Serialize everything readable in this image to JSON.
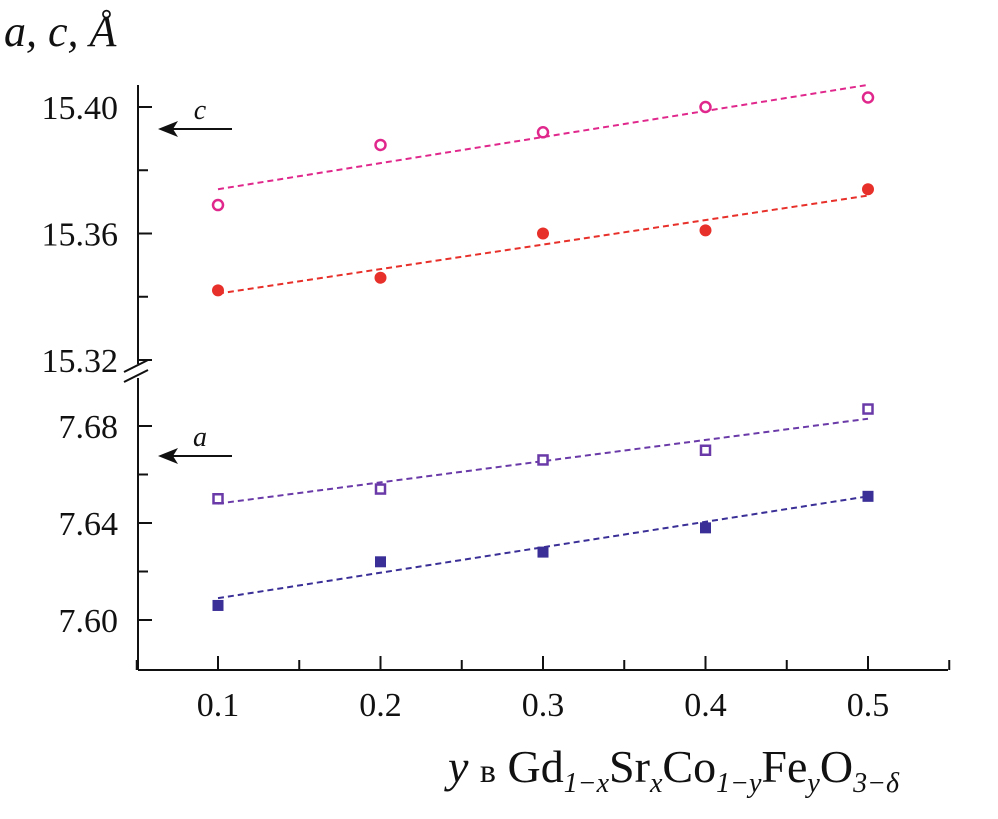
{
  "chart_data": {
    "type": "scatter",
    "title": "",
    "ylabel": "a, c, Å",
    "xlabel": {
      "variable": "y",
      "preposition": "в",
      "formula_parts": [
        {
          "text": "Gd",
          "sub": "1−x"
        },
        {
          "text": "Sr",
          "sub": "x"
        },
        {
          "text": "Co",
          "sub": "1−y"
        },
        {
          "text": "Fe",
          "sub": "y"
        },
        {
          "text": "O",
          "sub": "3−δ"
        }
      ]
    },
    "xlim": [
      0.05,
      0.55
    ],
    "x_ticks": [
      "0.1",
      "0.2",
      "0.3",
      "0.4",
      "0.5"
    ],
    "y_axis_broken": true,
    "panels": [
      {
        "name": "c",
        "ylim": [
          15.32,
          15.407
        ],
        "y_ticks": [
          "15.32",
          "15.36",
          "15.40"
        ],
        "annotation": "c"
      },
      {
        "name": "a",
        "ylim": [
          7.579,
          7.7
        ],
        "y_ticks": [
          "7.60",
          "7.64",
          "7.68"
        ],
        "annotation": "a"
      }
    ],
    "series": [
      {
        "name": "c open",
        "panel": "c",
        "marker": "open-circle",
        "color": "#e0288c",
        "x": [
          0.1,
          0.2,
          0.3,
          0.4,
          0.5
        ],
        "y": [
          15.369,
          15.388,
          15.392,
          15.4,
          15.403
        ],
        "fit": {
          "x": [
            0.1,
            0.5
          ],
          "y": [
            15.374,
            15.407
          ]
        }
      },
      {
        "name": "c filled",
        "panel": "c",
        "marker": "filled-circle",
        "color": "#e8302a",
        "x": [
          0.1,
          0.2,
          0.3,
          0.4,
          0.5
        ],
        "y": [
          15.342,
          15.346,
          15.36,
          15.361,
          15.374
        ],
        "fit": {
          "x": [
            0.1,
            0.5
          ],
          "y": [
            15.341,
            15.372
          ]
        }
      },
      {
        "name": "a open",
        "panel": "a",
        "marker": "open-square",
        "color": "#6a3aa8",
        "x": [
          0.1,
          0.2,
          0.3,
          0.4,
          0.5
        ],
        "y": [
          7.65,
          7.654,
          7.666,
          7.67,
          7.687
        ],
        "fit": {
          "x": [
            0.1,
            0.5
          ],
          "y": [
            7.648,
            7.683
          ]
        }
      },
      {
        "name": "a filled",
        "panel": "a",
        "marker": "filled-square",
        "color": "#3a2f96",
        "x": [
          0.1,
          0.2,
          0.3,
          0.4,
          0.5
        ],
        "y": [
          7.606,
          7.624,
          7.628,
          7.638,
          7.651
        ],
        "fit": {
          "x": [
            0.1,
            0.5
          ],
          "y": [
            7.609,
            7.651
          ]
        }
      }
    ]
  }
}
